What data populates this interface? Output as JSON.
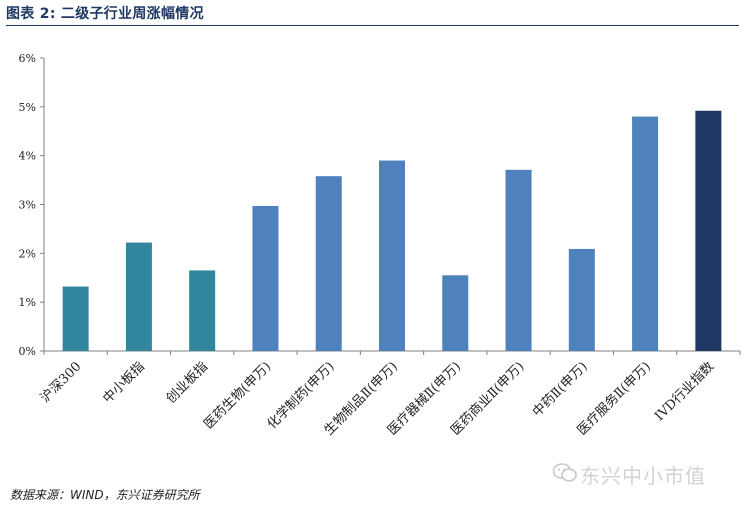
{
  "header": {
    "title": "图表 2:  二级子行业周涨幅情况"
  },
  "footer": {
    "source": "数据来源：WIND，东兴证券研究所"
  },
  "watermark": {
    "text": "东兴中小市值",
    "icon": "wechat-icon"
  },
  "colors": {
    "teal": "#31859c",
    "blue": "#4f81bd",
    "navy": "#1f3864",
    "axis": "#808080"
  },
  "chart_data": {
    "type": "bar",
    "title": "",
    "xlabel": "",
    "ylabel": "",
    "ylim": [
      0,
      6
    ],
    "yticks": [
      0,
      1,
      2,
      3,
      4,
      5,
      6
    ],
    "ytick_labels": [
      "0%",
      "1%",
      "2%",
      "3%",
      "4%",
      "5%",
      "6%"
    ],
    "grid": false,
    "legend": "none",
    "categories": [
      "沪深300",
      "中小板指",
      "创业板指",
      "医药生物(申万)",
      "化学制药(申万)",
      "生物制品Ⅱ(申万)",
      "医疗器械Ⅱ(申万)",
      "医药商业Ⅱ(申万)",
      "中药Ⅱ(申万)",
      "医疗服务Ⅱ(申万)",
      "IVD行业指数"
    ],
    "values": [
      1.32,
      2.22,
      1.65,
      2.97,
      3.58,
      3.9,
      1.55,
      3.71,
      2.09,
      4.8,
      4.92
    ],
    "bar_colors": [
      "#31859c",
      "#31859c",
      "#31859c",
      "#4f81bd",
      "#4f81bd",
      "#4f81bd",
      "#4f81bd",
      "#4f81bd",
      "#4f81bd",
      "#4f81bd",
      "#1f3864"
    ]
  }
}
